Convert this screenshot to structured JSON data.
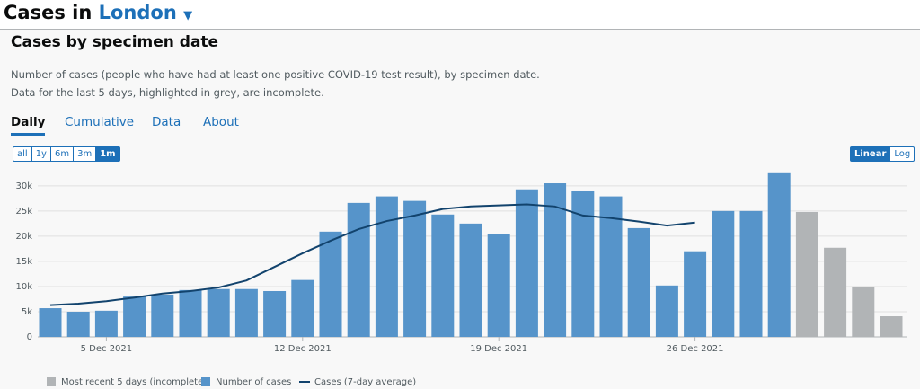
{
  "header": {
    "prefix": "Cases in",
    "area": "London"
  },
  "description": [
    "Number of cases (people who have had at least one positive COVID-19 test result), by specimen date.",
    "Data for the last 5 days, highlighted in grey, are incomplete."
  ],
  "tabs": [
    "Daily",
    "Cumulative",
    "Data",
    "About"
  ],
  "range_buttons": [
    "all",
    "1y",
    "6m",
    "3m",
    "1m"
  ],
  "scale_buttons": [
    "Linear",
    "Log"
  ],
  "chart_data": {
    "type": "bar",
    "title": "Cases by specimen date",
    "categories": [
      null,
      null,
      "5 Dec 2021",
      null,
      null,
      null,
      null,
      null,
      null,
      "12 Dec 2021",
      null,
      null,
      null,
      null,
      null,
      null,
      "19 Dec 2021",
      null,
      null,
      null,
      null,
      null,
      null,
      "26 Dec 2021",
      null,
      null,
      null,
      null,
      null,
      null,
      null
    ],
    "series": [
      {
        "name": "Most recent 5 days (incomplete)",
        "color": "#b1b4b6",
        "values": [
          null,
          null,
          null,
          null,
          null,
          null,
          null,
          null,
          null,
          null,
          null,
          null,
          null,
          null,
          null,
          null,
          null,
          null,
          null,
          null,
          null,
          null,
          null,
          null,
          null,
          null,
          null,
          24800,
          17700,
          10000,
          4100
        ]
      },
      {
        "name": "Number of cases",
        "color": "#5694ca",
        "values": [
          5700,
          5000,
          5200,
          8000,
          8400,
          9300,
          9500,
          9500,
          9100,
          11300,
          20900,
          26600,
          27900,
          27000,
          24300,
          22500,
          20400,
          29300,
          30500,
          28900,
          27900,
          21600,
          10200,
          17000,
          25000,
          25000,
          32500,
          null,
          null,
          null,
          null
        ]
      },
      {
        "name": "Cases (7-day average)",
        "color": "#12436d",
        "type": "line",
        "values": [
          6300,
          6600,
          7100,
          7800,
          8600,
          9100,
          9800,
          11200,
          13900,
          16600,
          19100,
          21400,
          23000,
          24100,
          25400,
          25900,
          26100,
          26300,
          25900,
          24100,
          23600,
          22900,
          22100,
          22700,
          null,
          null,
          null,
          null,
          null,
          null,
          null
        ]
      }
    ],
    "ylim": [
      0,
      33000
    ],
    "yticks": [
      0,
      {
        "value": 5000,
        "label": "5k"
      },
      {
        "value": 10000,
        "label": "10k"
      },
      {
        "value": 15000,
        "label": "15k"
      },
      {
        "value": 20000,
        "label": "20k"
      },
      {
        "value": 25000,
        "label": "25k"
      },
      {
        "value": 30000,
        "label": "30k"
      }
    ],
    "grid": true
  }
}
